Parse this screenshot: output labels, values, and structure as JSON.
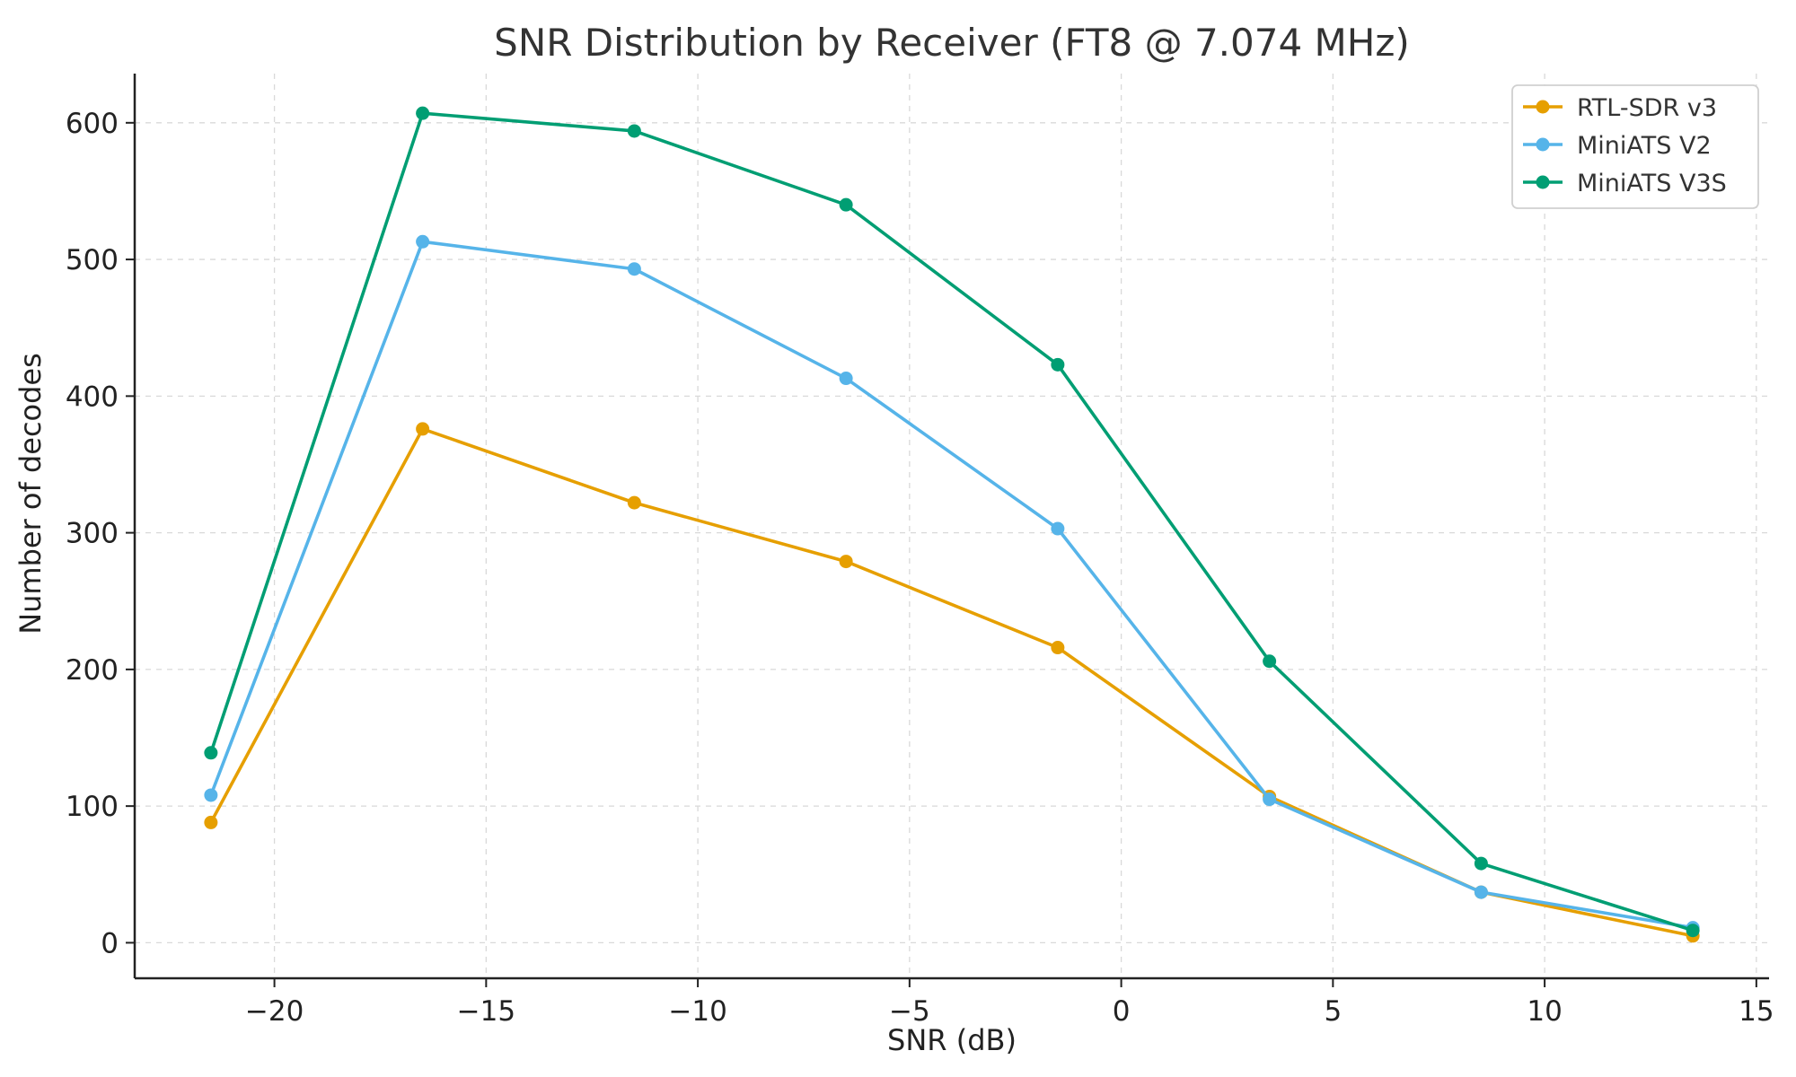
{
  "chart_data": {
    "type": "line",
    "title": "SNR Distribution by Receiver (FT8 @ 7.074 MHz)",
    "xlabel": "SNR (dB)",
    "ylabel": "Number of decodes",
    "xlim": [
      -23.3,
      15.3
    ],
    "ylim": [
      -26,
      636
    ],
    "xticks": [
      -20,
      -15,
      -10,
      -5,
      0,
      5,
      10,
      15
    ],
    "xtick_labels": [
      "−20",
      "−15",
      "−10",
      "−5",
      "0",
      "5",
      "10",
      "15"
    ],
    "yticks": [
      0,
      100,
      200,
      300,
      400,
      500,
      600
    ],
    "ytick_labels": [
      "0",
      "100",
      "200",
      "300",
      "400",
      "500",
      "600"
    ],
    "x": [
      -21.5,
      -16.5,
      -11.5,
      -6.5,
      -1.5,
      3.5,
      8.5,
      13.5
    ],
    "grid": true,
    "legend_position": "top-right",
    "series": [
      {
        "name": "RTL-SDR v3",
        "color": "#e69f00",
        "values": [
          88,
          376,
          322,
          279,
          216,
          107,
          37,
          5
        ]
      },
      {
        "name": "MiniATS V2",
        "color": "#56b4e9",
        "values": [
          108,
          513,
          493,
          413,
          303,
          105,
          37,
          11
        ]
      },
      {
        "name": "MiniATS V3S",
        "color": "#009e73",
        "values": [
          139,
          607,
          594,
          540,
          423,
          206,
          58,
          9
        ]
      }
    ]
  }
}
